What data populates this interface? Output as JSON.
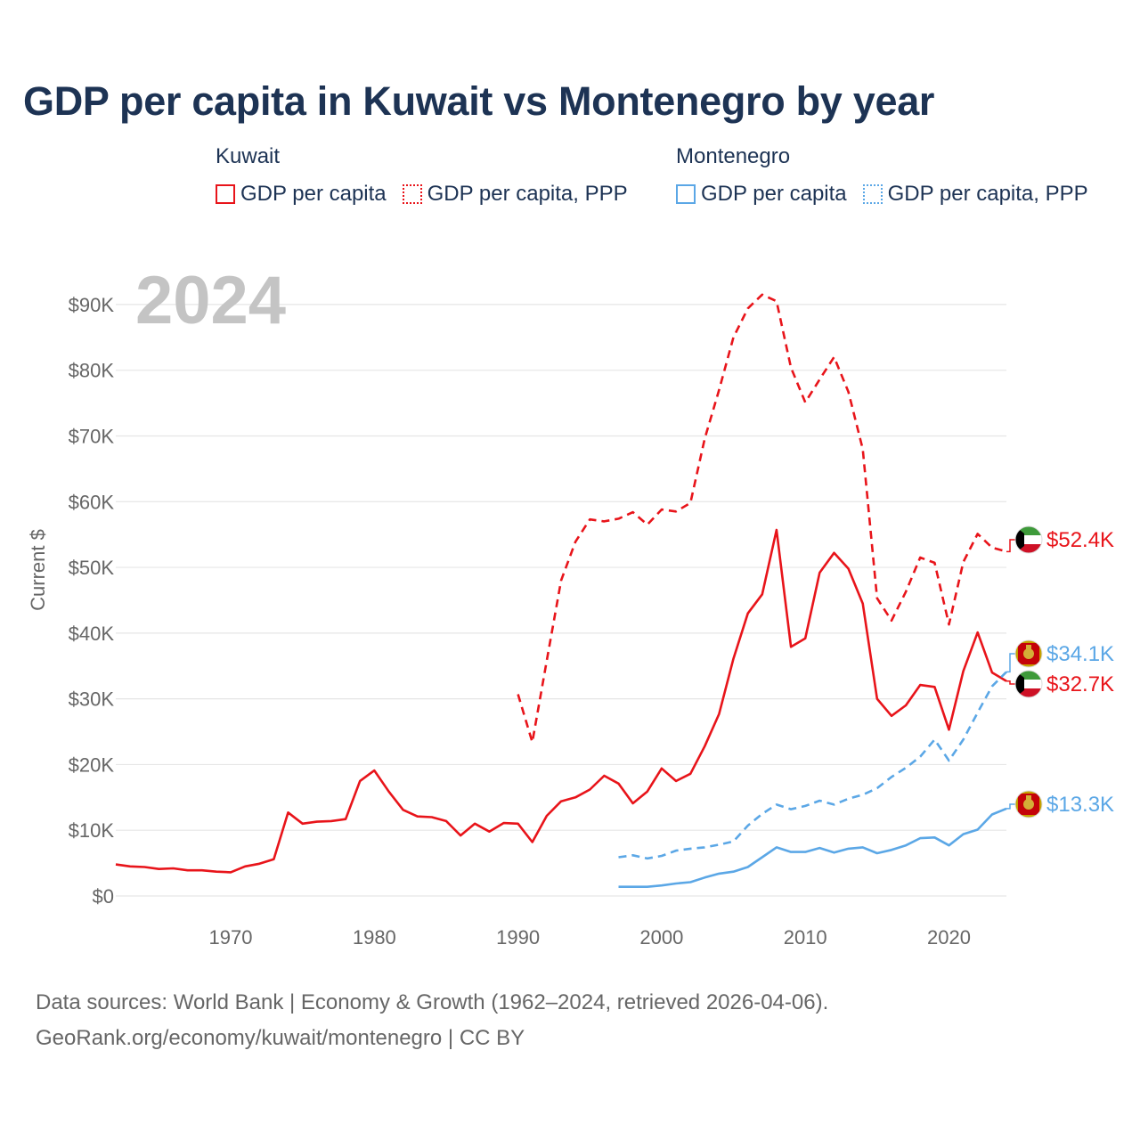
{
  "title": "GDP per capita in Kuwait vs Montenegro by year",
  "legend": {
    "groups": [
      {
        "name": "Kuwait",
        "items": [
          {
            "label": "GDP per capita",
            "style": "solid",
            "color": "#e8141a"
          },
          {
            "label": "GDP per capita, PPP",
            "style": "dotted",
            "color": "#e8141a"
          }
        ]
      },
      {
        "name": "Montenegro",
        "items": [
          {
            "label": "GDP per capita",
            "style": "solid",
            "color": "#5ba7e6"
          },
          {
            "label": "GDP per capita, PPP",
            "style": "dotted",
            "color": "#5ba7e6"
          }
        ]
      }
    ]
  },
  "footer": {
    "line1": "Data sources: World Bank | Economy & Growth (1962–2024, retrieved 2026-04-06).",
    "line2": "GeoRank.org/economy/kuwait/montenegro | CC BY"
  },
  "chart_data": {
    "type": "line",
    "title": "GDP per capita in Kuwait vs Montenegro by year",
    "year_watermark": "2024",
    "ylabel": "Current $",
    "xlabel": "",
    "xlim": [
      1962,
      2024
    ],
    "ylim": [
      0,
      95000
    ],
    "x_ticks": [
      1970,
      1980,
      1990,
      2000,
      2010,
      2020
    ],
    "y_ticks": [
      {
        "value": 0,
        "label": "$0"
      },
      {
        "value": 10000,
        "label": "$10K"
      },
      {
        "value": 20000,
        "label": "$20K"
      },
      {
        "value": 30000,
        "label": "$30K"
      },
      {
        "value": 40000,
        "label": "$40K"
      },
      {
        "value": 50000,
        "label": "$50K"
      },
      {
        "value": 60000,
        "label": "$60K"
      },
      {
        "value": 70000,
        "label": "$70K"
      },
      {
        "value": 80000,
        "label": "$80K"
      },
      {
        "value": 90000,
        "label": "$90K"
      }
    ],
    "grid": true,
    "series": [
      {
        "name": "Kuwait GDP per capita",
        "color": "#e8141a",
        "dash": "solid",
        "country": "kuwait",
        "end_label": "$32.7K",
        "x": [
          1962,
          1963,
          1964,
          1965,
          1966,
          1967,
          1968,
          1969,
          1970,
          1971,
          1972,
          1973,
          1974,
          1975,
          1976,
          1977,
          1978,
          1979,
          1980,
          1981,
          1982,
          1983,
          1984,
          1985,
          1986,
          1987,
          1988,
          1989,
          1990,
          1991,
          1992,
          1993,
          1994,
          1995,
          1996,
          1997,
          1998,
          1999,
          2000,
          2001,
          2002,
          2003,
          2004,
          2005,
          2006,
          2007,
          2008,
          2009,
          2010,
          2011,
          2012,
          2013,
          2014,
          2015,
          2016,
          2017,
          2018,
          2019,
          2020,
          2021,
          2022,
          2023,
          2024
        ],
        "values": [
          4800,
          4500,
          4400,
          4100,
          4200,
          3900,
          3900,
          3700,
          3600,
          4500,
          4900,
          5600,
          12700,
          11000,
          11300,
          11400,
          11700,
          17500,
          19100,
          15900,
          13100,
          12100,
          12000,
          11400,
          9200,
          11000,
          9800,
          11100,
          11000,
          8200,
          12200,
          14400,
          15000,
          16200,
          18300,
          17100,
          14100,
          15900,
          19400,
          17500,
          18600,
          22800,
          27700,
          36100,
          43000,
          45900,
          55700,
          37900,
          39200,
          49200,
          52200,
          49800,
          44500,
          30000,
          27400,
          29000,
          32100,
          31800,
          25300,
          34200,
          40100,
          34000,
          32700
        ]
      },
      {
        "name": "Kuwait GDP per capita, PPP",
        "color": "#e8141a",
        "dash": "dashed",
        "country": "kuwait",
        "end_label": "$52.4K",
        "x": [
          1990,
          1991,
          1992,
          1993,
          1994,
          1995,
          1996,
          1997,
          1998,
          1999,
          2000,
          2001,
          2002,
          2003,
          2004,
          2005,
          2006,
          2007,
          2008,
          2009,
          2010,
          2011,
          2012,
          2013,
          2014,
          2015,
          2016,
          2017,
          2018,
          2019,
          2020,
          2021,
          2022,
          2023,
          2024
        ],
        "values": [
          30700,
          23400,
          35800,
          48000,
          53900,
          57300,
          57000,
          57400,
          58400,
          56500,
          58800,
          58500,
          59800,
          69600,
          77000,
          85000,
          89400,
          91500,
          90500,
          80400,
          75100,
          78600,
          82000,
          76700,
          68000,
          45300,
          41900,
          46300,
          51500,
          50700,
          41300,
          50800,
          55100,
          53000,
          52400
        ]
      },
      {
        "name": "Montenegro GDP per capita",
        "color": "#5ba7e6",
        "dash": "solid",
        "country": "montenegro",
        "end_label": "$13.3K",
        "x": [
          1997,
          1998,
          1999,
          2000,
          2001,
          2002,
          2003,
          2004,
          2005,
          2006,
          2007,
          2008,
          2009,
          2010,
          2011,
          2012,
          2013,
          2014,
          2015,
          2016,
          2017,
          2018,
          2019,
          2020,
          2021,
          2022,
          2023,
          2024
        ],
        "values": [
          1400,
          1400,
          1400,
          1600,
          1900,
          2100,
          2800,
          3400,
          3700,
          4400,
          5900,
          7400,
          6700,
          6700,
          7300,
          6600,
          7200,
          7400,
          6500,
          7000,
          7700,
          8800,
          8900,
          7700,
          9400,
          10100,
          12400,
          13300
        ]
      },
      {
        "name": "Montenegro GDP per capita, PPP",
        "color": "#5ba7e6",
        "dash": "dashed",
        "country": "montenegro",
        "end_label": "$34.1K",
        "x": [
          1997,
          1998,
          1999,
          2000,
          2001,
          2002,
          2003,
          2004,
          2005,
          2006,
          2007,
          2008,
          2009,
          2010,
          2011,
          2012,
          2013,
          2014,
          2015,
          2016,
          2017,
          2018,
          2019,
          2020,
          2021,
          2022,
          2023,
          2024
        ],
        "values": [
          5900,
          6200,
          5700,
          6100,
          6900,
          7200,
          7400,
          7800,
          8300,
          10700,
          12500,
          13900,
          13200,
          13700,
          14500,
          13900,
          14800,
          15400,
          16400,
          18100,
          19500,
          21200,
          23800,
          20600,
          23800,
          27900,
          31900,
          34100
        ]
      }
    ]
  }
}
